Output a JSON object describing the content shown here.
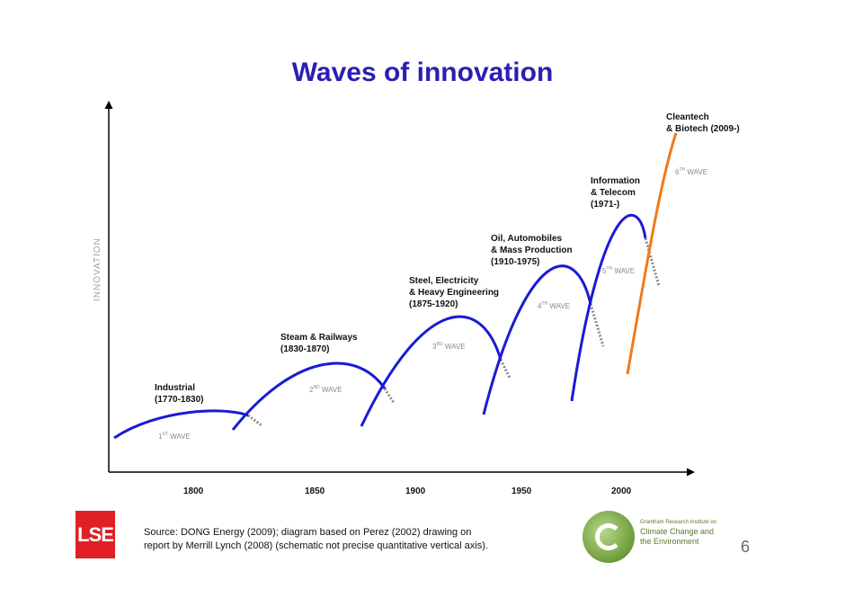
{
  "title": "Waves of innovation",
  "yaxis_label": "INNOVATION",
  "x_ticks": [
    "1800",
    "1850",
    "1900",
    "1950",
    "2000"
  ],
  "waves": [
    {
      "id": 1,
      "title_lines": [
        "Industrial",
        "(1770-1830)"
      ],
      "label_num": "1",
      "label_sup": "ST",
      "label_word": "WAVE",
      "color": "#1a1ad6"
    },
    {
      "id": 2,
      "title_lines": [
        "Steam & Railways",
        "(1830-1870)"
      ],
      "label_num": "2",
      "label_sup": "ND",
      "label_word": "WAVE",
      "color": "#1a1ad6"
    },
    {
      "id": 3,
      "title_lines": [
        "Steel, Electricity",
        "& Heavy Engineering",
        "(1875-1920)"
      ],
      "label_num": "3",
      "label_sup": "RD",
      "label_word": "WAVE",
      "color": "#1a1ad6"
    },
    {
      "id": 4,
      "title_lines": [
        "Oil, Automobiles",
        "& Mass Production",
        "(1910-1975)"
      ],
      "label_num": "4",
      "label_sup": "TH",
      "label_word": "WAVE",
      "color": "#1a1ad6"
    },
    {
      "id": 5,
      "title_lines": [
        "Information",
        "& Telecom",
        "(1971-)"
      ],
      "label_num": "5",
      "label_sup": "TH",
      "label_word": "WAVE",
      "color": "#1a1ad6"
    },
    {
      "id": 6,
      "title_lines": [
        "Cleantech",
        "& Biotech (2009-)"
      ],
      "label_num": "6",
      "label_sup": "TH",
      "label_word": "WAVE",
      "color": "#f07a1a"
    }
  ],
  "source_lines": [
    "Source: DONG Energy (2009); diagram based on Perez (2002) drawing on",
    "report by Merrill Lynch (2008) (schematic not precise quantitative vertical axis)."
  ],
  "lse_logo": "LSE",
  "grantham": {
    "line1": "Grantham Research Institute on",
    "line2": "Climate Change and",
    "line3": "the Environment"
  },
  "page_number": "6"
}
